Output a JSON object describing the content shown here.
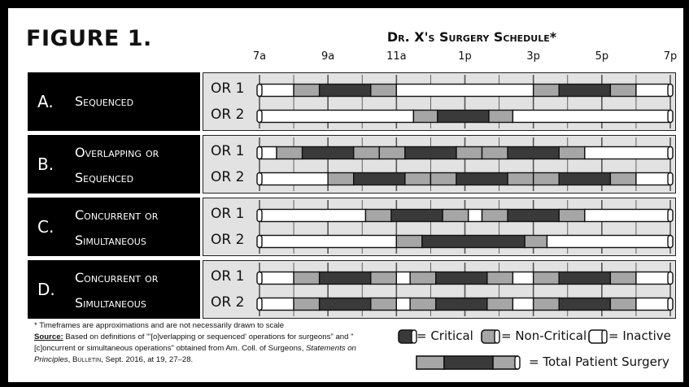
{
  "figure_label": "FIGURE 1.",
  "schedule_title": "Dr. X's Surgery Schedule*",
  "time_labels": [
    "7a",
    "9a",
    "11a",
    "1p",
    "3p",
    "5p",
    "7p"
  ],
  "sections": [
    {
      "letter": "A.",
      "name_lines": [
        "Sequenced",
        ""
      ],
      "rooms": [
        {
          "label": "OR 1",
          "segments": [
            {
              "type": "inactive",
              "start": 7.0,
              "end": 8.0
            },
            {
              "type": "non-critical",
              "start": 8.0,
              "end": 8.75
            },
            {
              "type": "critical",
              "start": 8.75,
              "end": 10.25
            },
            {
              "type": "non-critical",
              "start": 10.25,
              "end": 11.0
            },
            {
              "type": "inactive",
              "start": 11.0,
              "end": 15.0
            },
            {
              "type": "non-critical",
              "start": 15.0,
              "end": 15.75
            },
            {
              "type": "critical",
              "start": 15.75,
              "end": 17.25
            },
            {
              "type": "non-critical",
              "start": 17.25,
              "end": 18.0
            },
            {
              "type": "inactive",
              "start": 18.0,
              "end": 19.0
            }
          ]
        },
        {
          "label": "OR 2",
          "segments": [
            {
              "type": "inactive",
              "start": 7.0,
              "end": 11.5
            },
            {
              "type": "non-critical",
              "start": 11.5,
              "end": 12.2
            },
            {
              "type": "critical",
              "start": 12.2,
              "end": 13.7
            },
            {
              "type": "non-critical",
              "start": 13.7,
              "end": 14.4
            },
            {
              "type": "inactive",
              "start": 14.4,
              "end": 19.0
            }
          ]
        }
      ]
    },
    {
      "letter": "B.",
      "name_lines": [
        "Overlapping or",
        "Sequenced"
      ],
      "rooms": [
        {
          "label": "OR 1",
          "segments": [
            {
              "type": "inactive",
              "start": 7.0,
              "end": 7.5
            },
            {
              "type": "non-critical",
              "start": 7.5,
              "end": 8.25
            },
            {
              "type": "critical",
              "start": 8.25,
              "end": 9.75
            },
            {
              "type": "non-critical",
              "start": 9.75,
              "end": 10.5
            },
            {
              "type": "non-critical",
              "start": 10.5,
              "end": 11.25
            },
            {
              "type": "critical",
              "start": 11.25,
              "end": 12.75
            },
            {
              "type": "non-critical",
              "start": 12.75,
              "end": 13.5
            },
            {
              "type": "non-critical",
              "start": 13.5,
              "end": 14.25
            },
            {
              "type": "critical",
              "start": 14.25,
              "end": 15.75
            },
            {
              "type": "non-critical",
              "start": 15.75,
              "end": 16.5
            },
            {
              "type": "inactive",
              "start": 16.5,
              "end": 19.0
            }
          ]
        },
        {
          "label": "OR 2",
          "segments": [
            {
              "type": "inactive",
              "start": 7.0,
              "end": 9.0
            },
            {
              "type": "non-critical",
              "start": 9.0,
              "end": 9.75
            },
            {
              "type": "critical",
              "start": 9.75,
              "end": 11.25
            },
            {
              "type": "non-critical",
              "start": 11.25,
              "end": 12.0
            },
            {
              "type": "non-critical",
              "start": 12.0,
              "end": 12.75
            },
            {
              "type": "critical",
              "start": 12.75,
              "end": 14.25
            },
            {
              "type": "non-critical",
              "start": 14.25,
              "end": 15.0
            },
            {
              "type": "non-critical",
              "start": 15.0,
              "end": 15.75
            },
            {
              "type": "critical",
              "start": 15.75,
              "end": 17.25
            },
            {
              "type": "non-critical",
              "start": 17.25,
              "end": 18.0
            },
            {
              "type": "inactive",
              "start": 18.0,
              "end": 19.0
            }
          ]
        }
      ]
    },
    {
      "letter": "C.",
      "name_lines": [
        "Concurrent or",
        "Simultaneous"
      ],
      "rooms": [
        {
          "label": "OR 1",
          "segments": [
            {
              "type": "inactive",
              "start": 7.0,
              "end": 10.1
            },
            {
              "type": "non-critical",
              "start": 10.1,
              "end": 10.85
            },
            {
              "type": "critical",
              "start": 10.85,
              "end": 12.35
            },
            {
              "type": "non-critical",
              "start": 12.35,
              "end": 13.1
            },
            {
              "type": "inactive",
              "start": 13.1,
              "end": 13.5
            },
            {
              "type": "non-critical",
              "start": 13.5,
              "end": 14.25
            },
            {
              "type": "critical",
              "start": 14.25,
              "end": 15.75
            },
            {
              "type": "non-critical",
              "start": 15.75,
              "end": 16.5
            },
            {
              "type": "inactive",
              "start": 16.5,
              "end": 19.0
            }
          ]
        },
        {
          "label": "OR 2",
          "segments": [
            {
              "type": "inactive",
              "start": 7.0,
              "end": 11.0
            },
            {
              "type": "non-critical",
              "start": 11.0,
              "end": 11.75
            },
            {
              "type": "critical",
              "start": 11.75,
              "end": 14.75
            },
            {
              "type": "non-critical",
              "start": 14.75,
              "end": 15.4
            },
            {
              "type": "inactive",
              "start": 15.4,
              "end": 19.0
            }
          ]
        }
      ]
    },
    {
      "letter": "D.",
      "name_lines": [
        "Concurrent or",
        "Simultaneous"
      ],
      "rooms": [
        {
          "label": "OR 1",
          "segments": [
            {
              "type": "inactive",
              "start": 7.0,
              "end": 8.0
            },
            {
              "type": "non-critical",
              "start": 8.0,
              "end": 8.75
            },
            {
              "type": "critical",
              "start": 8.75,
              "end": 10.25
            },
            {
              "type": "non-critical",
              "start": 10.25,
              "end": 11.0
            },
            {
              "type": "inactive",
              "start": 11.0,
              "end": 11.4
            },
            {
              "type": "non-critical",
              "start": 11.4,
              "end": 12.15
            },
            {
              "type": "critical",
              "start": 12.15,
              "end": 13.65
            },
            {
              "type": "non-critical",
              "start": 13.65,
              "end": 14.4
            },
            {
              "type": "inactive",
              "start": 14.4,
              "end": 15.0
            },
            {
              "type": "non-critical",
              "start": 15.0,
              "end": 15.75
            },
            {
              "type": "critical",
              "start": 15.75,
              "end": 17.25
            },
            {
              "type": "non-critical",
              "start": 17.25,
              "end": 18.0
            },
            {
              "type": "inactive",
              "start": 18.0,
              "end": 19.0
            }
          ]
        },
        {
          "label": "OR 2",
          "segments": [
            {
              "type": "inactive",
              "start": 7.0,
              "end": 8.0
            },
            {
              "type": "non-critical",
              "start": 8.0,
              "end": 8.75
            },
            {
              "type": "critical",
              "start": 8.75,
              "end": 10.25
            },
            {
              "type": "non-critical",
              "start": 10.25,
              "end": 11.0
            },
            {
              "type": "inactive",
              "start": 11.0,
              "end": 11.4
            },
            {
              "type": "non-critical",
              "start": 11.4,
              "end": 12.15
            },
            {
              "type": "critical",
              "start": 12.15,
              "end": 13.65
            },
            {
              "type": "non-critical",
              "start": 13.65,
              "end": 14.4
            },
            {
              "type": "inactive",
              "start": 14.4,
              "end": 15.0
            },
            {
              "type": "non-critical",
              "start": 15.0,
              "end": 15.75
            },
            {
              "type": "critical",
              "start": 15.75,
              "end": 17.25
            },
            {
              "type": "non-critical",
              "start": 17.25,
              "end": 18.0
            },
            {
              "type": "inactive",
              "start": 18.0,
              "end": 19.0
            }
          ]
        }
      ]
    }
  ],
  "footnote": {
    "asterisk_note": "* Timeframes are approximations and are not necessarily drawn to scale",
    "source_label": "Source:",
    "source_text_1": " Based on definitions of \"'[o]verlapping or sequenced' operations for surgeons\" and \"[c]oncurrent or simultaneous operations\" obtained from Am. Coll. of Surgeons, ",
    "source_italic": "Statements on Principles",
    "source_text_2": ", ",
    "source_bulletin": "Bulletin",
    "source_text_3": ", Sept. 2016, at 19, 27–28."
  },
  "legend": {
    "critical": "= Critical",
    "non_critical": "= Non-Critical",
    "inactive": "= Inactive",
    "total": "= Total Patient Surgery"
  },
  "colors": {
    "critical": "#3a3a3a",
    "non_critical": "#a6a6a6",
    "inactive": "#ffffff",
    "panel": "#e2e2e2",
    "section_bg": "#000000"
  }
}
